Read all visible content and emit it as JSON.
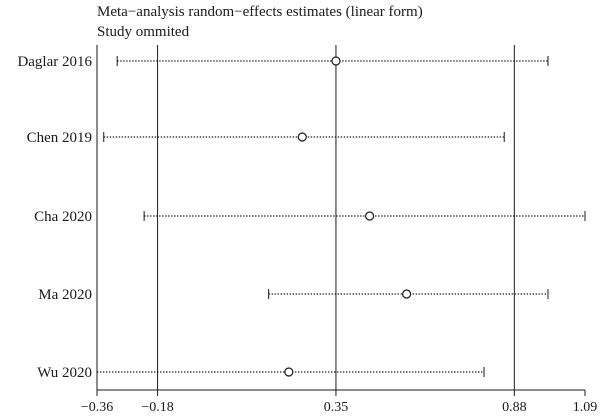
{
  "chart_data": {
    "type": "forest",
    "title": "Meta−analysis random−effects estimates (linear form)",
    "subtitle": "Study ommited",
    "xlim": [
      -0.36,
      1.09
    ],
    "x_ticks": [
      {
        "value": -0.36,
        "label": "−0.36"
      },
      {
        "value": -0.18,
        "label": "−0.18"
      },
      {
        "value": 0.35,
        "label": "0.35"
      },
      {
        "value": 0.88,
        "label": "0.88"
      },
      {
        "value": 1.09,
        "label": "1.09"
      }
    ],
    "reference_lines": [
      -0.18,
      0.35,
      0.88
    ],
    "studies": [
      {
        "label": "Daglar 2016",
        "estimate": 0.35,
        "lower": -0.3,
        "upper": 0.98
      },
      {
        "label": "Chen 2019",
        "estimate": 0.25,
        "lower": -0.34,
        "upper": 0.85
      },
      {
        "label": "Cha 2020",
        "estimate": 0.45,
        "lower": -0.22,
        "upper": 1.09
      },
      {
        "label": "Ma 2020",
        "estimate": 0.56,
        "lower": 0.15,
        "upper": 0.98
      },
      {
        "label": "Wu 2020",
        "estimate": 0.21,
        "lower": -0.36,
        "upper": 0.79
      }
    ]
  }
}
